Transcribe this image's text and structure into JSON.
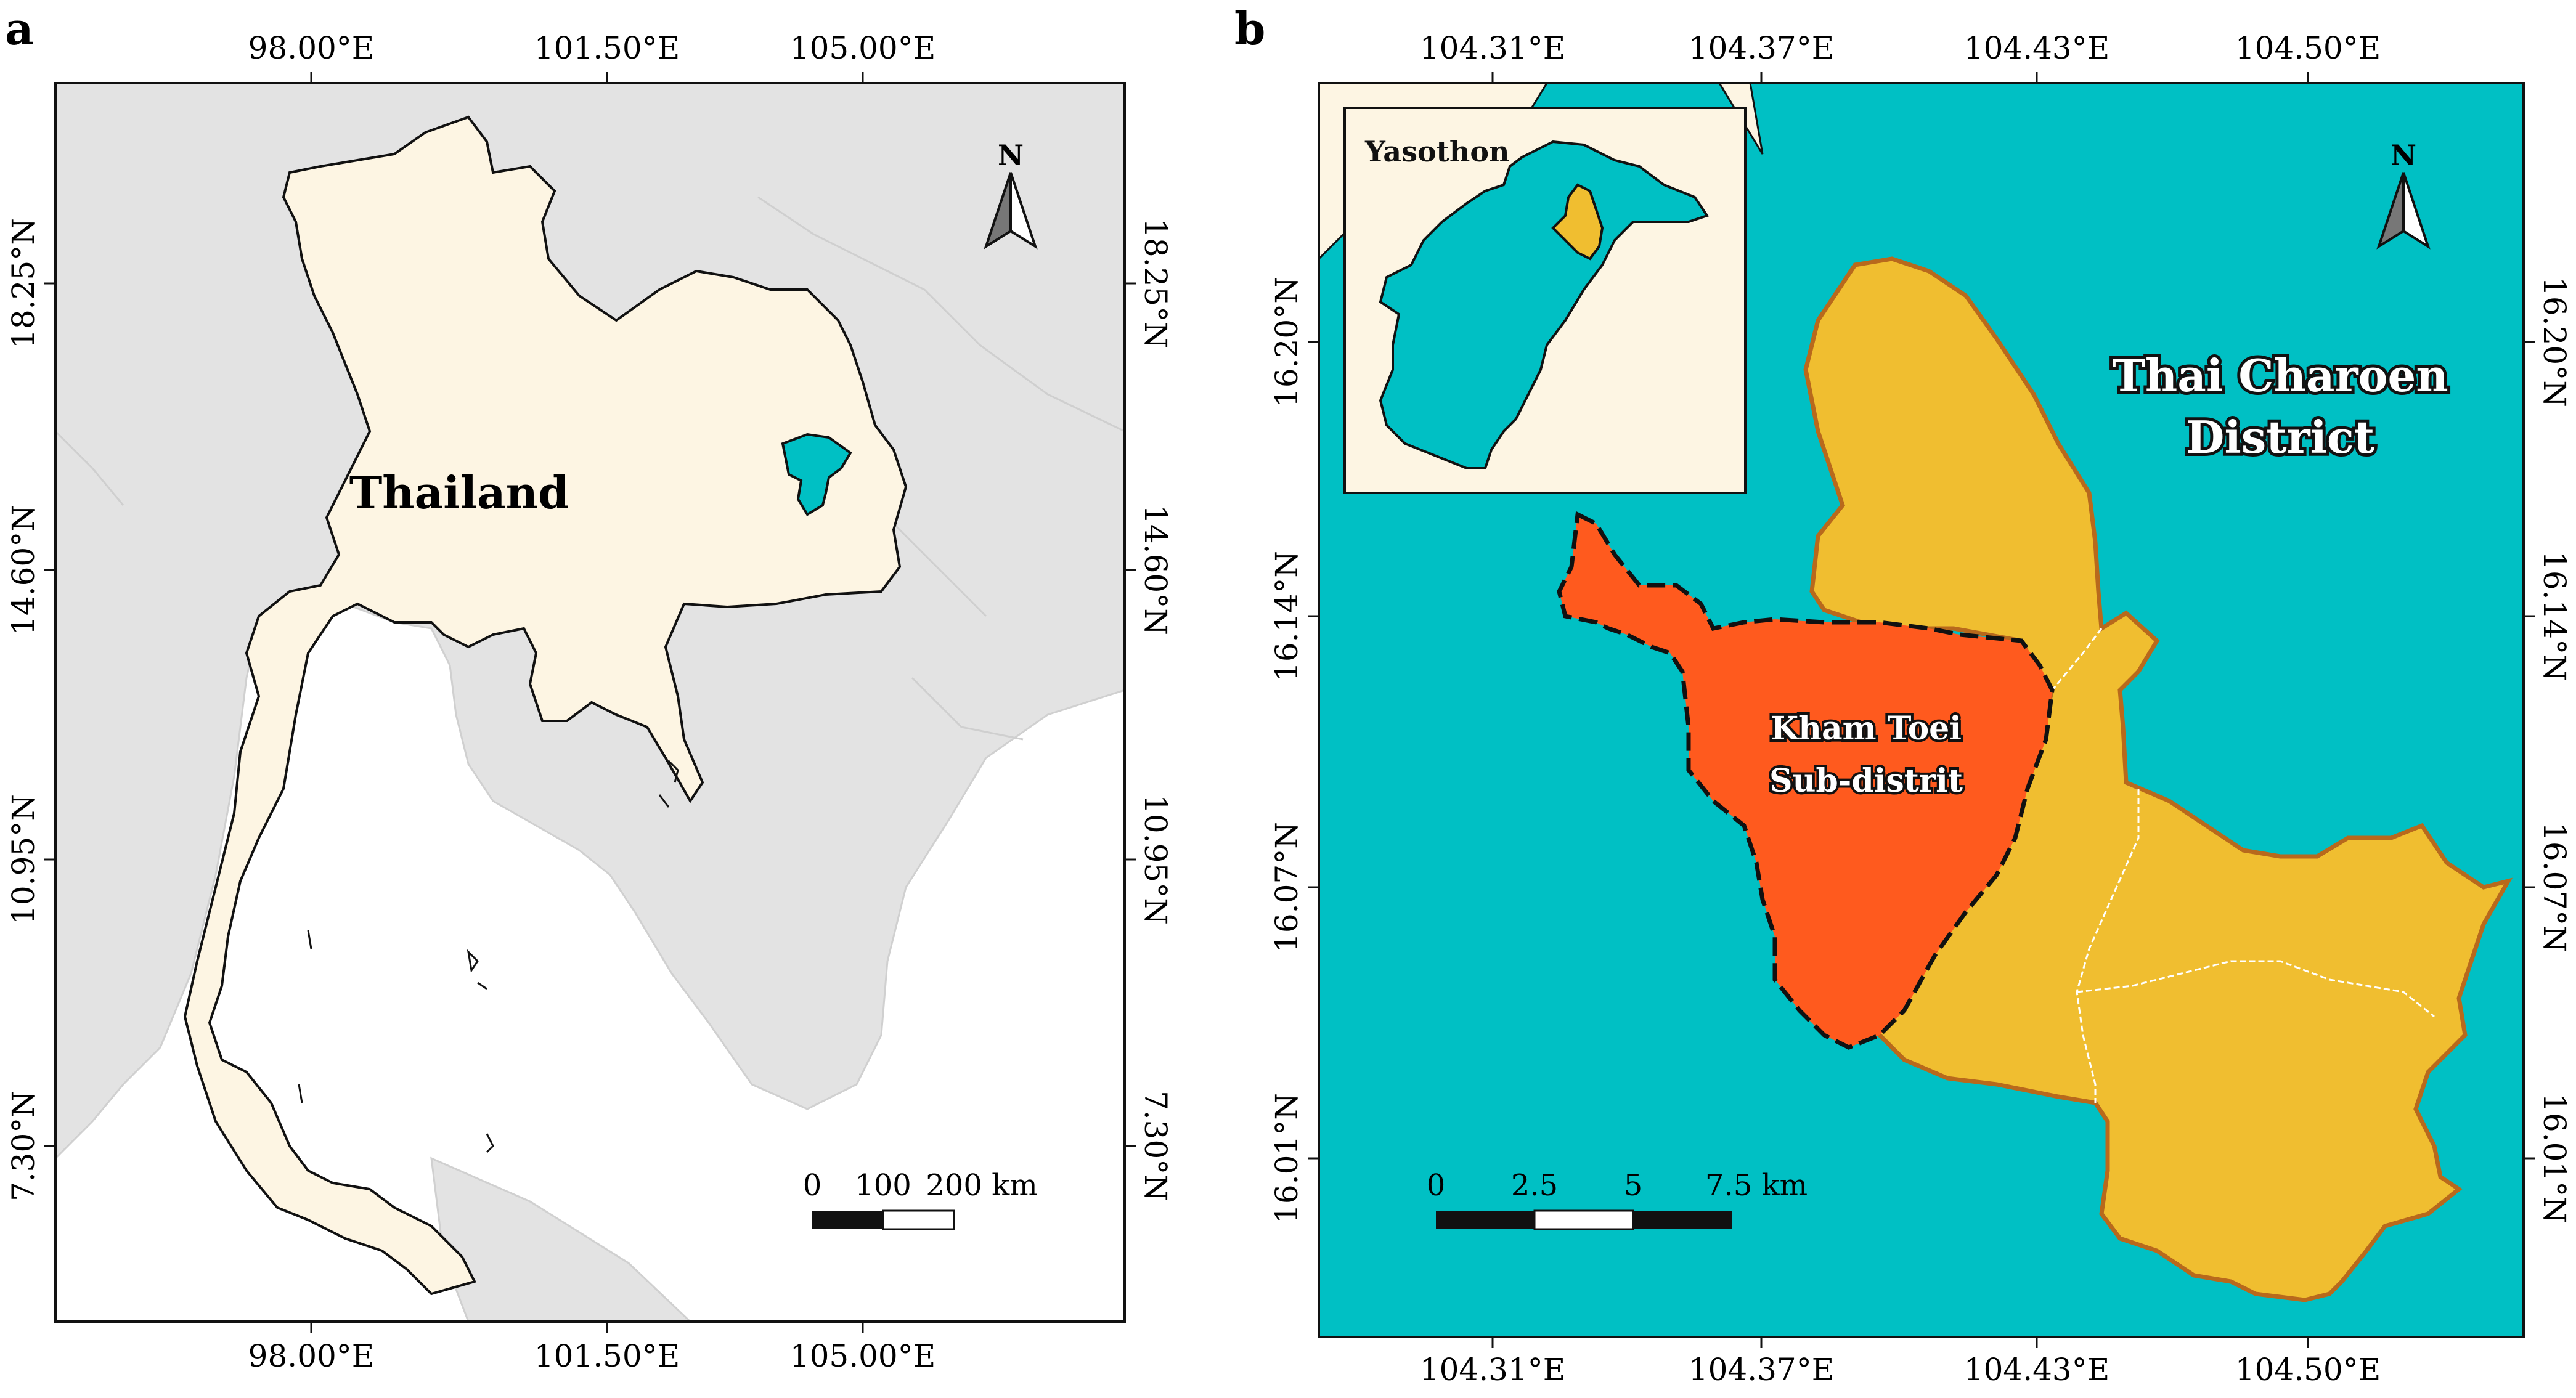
{
  "panel_a": {
    "label": "a",
    "lon_ticks": [
      "98.00°E",
      "101.50°E",
      "105.00°E"
    ],
    "lat_ticks": [
      "18.25°N",
      "14.60°N",
      "10.95°N",
      "7.30°N"
    ],
    "country_label": "Thailand",
    "north": "N",
    "scale": {
      "ticks": [
        "0",
        "100",
        "200 km"
      ]
    },
    "colors": {
      "ocean": "#ffffff",
      "neighbors": "#e3e3e3",
      "country": "#fdf5e3",
      "province": "#00c0c4"
    }
  },
  "panel_b": {
    "label": "b",
    "lon_ticks": [
      "104.31°E",
      "104.37°E",
      "104.43°E",
      "104.50°E"
    ],
    "lat_ticks": [
      "16.20°N",
      "16.14°N",
      "16.07°N",
      "16.01°N"
    ],
    "district_label": [
      "Thai Charoen",
      "District"
    ],
    "subdistrict_label": [
      "Kham Toei",
      "Sub-distrit"
    ],
    "inset_label": "Yasothon",
    "north": "N",
    "scale": {
      "ticks": [
        "0",
        "2.5",
        "5",
        "7.5 km"
      ]
    },
    "colors": {
      "background": "#00c0c4",
      "district": "#f0be30",
      "subdistrict": "#ff5a1e",
      "district_border": "#b8691c",
      "inset_bg": "#fdf5e3"
    }
  }
}
